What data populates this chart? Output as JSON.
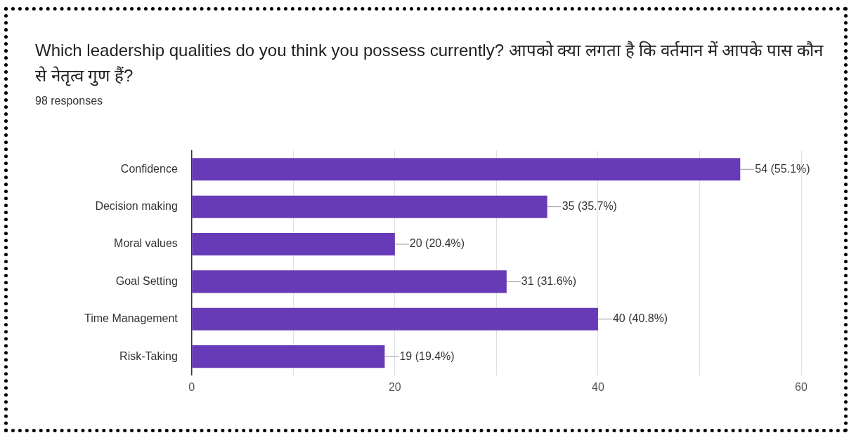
{
  "chart_data": {
    "type": "bar",
    "orientation": "horizontal",
    "title": "Which leadership qualities do you think you possess currently? आपको क्या लगता है कि वर्तमान में आपके पास कौन से नेतृत्व गुण हैं?",
    "subtitle": "98 responses",
    "categories": [
      "Confidence",
      "Decision making",
      "Moral values",
      "Goal Setting",
      "Time Management",
      "Risk-Taking"
    ],
    "values": [
      54,
      35,
      20,
      31,
      40,
      19
    ],
    "value_labels": [
      "54 (55.1%)",
      "35 (35.7%)",
      "20 (20.4%)",
      "31 (31.6%)",
      "40 (40.8%)",
      "19 (19.4%)"
    ],
    "color": "#673ab7",
    "xlim": [
      0,
      60
    ],
    "xticks": [
      0,
      {
        "value": 10,
        "label": null
      },
      20,
      {
        "value": 30,
        "label": null
      },
      40,
      {
        "value": 50,
        "label": null
      },
      60
    ],
    "grid": "x",
    "legend": false
  }
}
